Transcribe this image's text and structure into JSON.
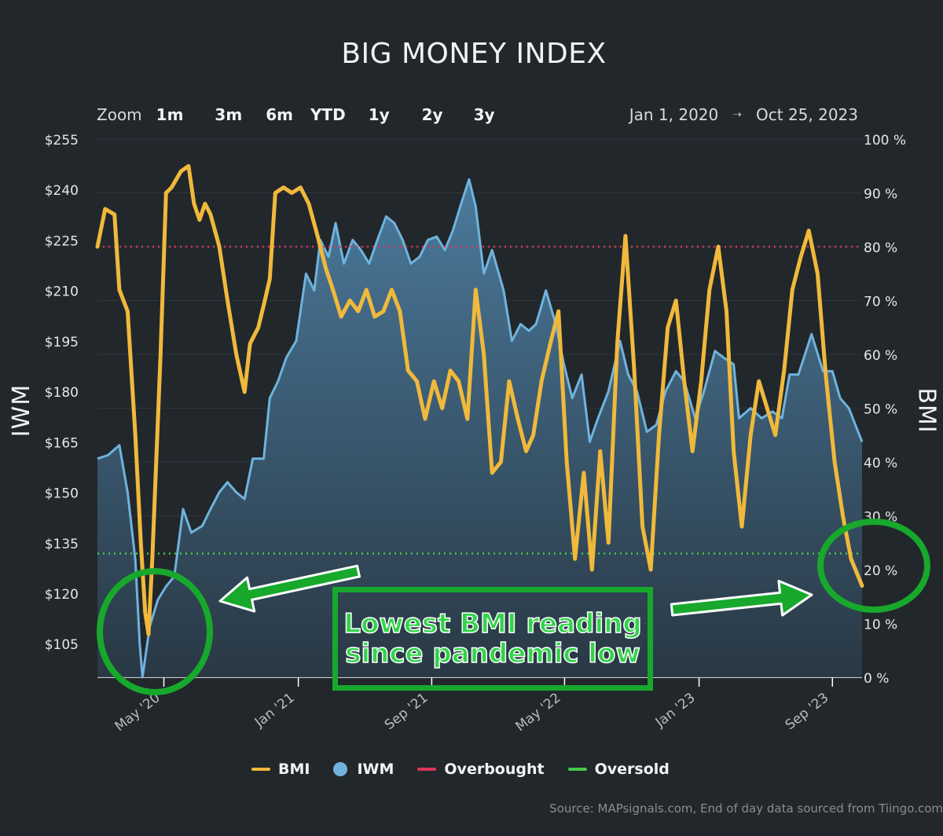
{
  "header": {
    "title": "BIG MONEY INDEX"
  },
  "zoom": {
    "label": "Zoom",
    "buttons": [
      "1m",
      "3m",
      "6m",
      "YTD",
      "1y",
      "2y",
      "3y"
    ]
  },
  "date_range": {
    "from": "Jan 1, 2020",
    "to": "Oct 25, 2023"
  },
  "axes": {
    "left_title": "IWM",
    "right_title": "BMI"
  },
  "legend": [
    {
      "label": "BMI",
      "color": "#f0b93b",
      "shape": "line"
    },
    {
      "label": "IWM",
      "color": "#6fb3dd",
      "shape": "dot"
    },
    {
      "label": "Overbought",
      "color": "#d9365a",
      "shape": "line"
    },
    {
      "label": "Oversold",
      "color": "#46c84b",
      "shape": "line"
    }
  ],
  "callout": {
    "line1": "Lowest BMI reading",
    "line2": "since pandemic low"
  },
  "source": "Source: MAPsignals.com, End of day data sourced from Tiingo.com",
  "chart_data": {
    "type": "line",
    "title": "BIG MONEY INDEX",
    "x_range": [
      "2020-01-01",
      "2023-10-25"
    ],
    "x_ticks": [
      "May '20",
      "Jan '21",
      "Sep '21",
      "May '22",
      "Jan '23",
      "Sep '23"
    ],
    "y_left": {
      "label": "IWM",
      "ticks": [
        "$105",
        "$120",
        "$135",
        "$150",
        "$165",
        "$180",
        "$195",
        "$210",
        "$225",
        "$240",
        "$255"
      ],
      "range": [
        95,
        255
      ]
    },
    "y_right": {
      "label": "BMI",
      "ticks": [
        "0 %",
        "10 %",
        "20 %",
        "30 %",
        "40 %",
        "50 %",
        "60 %",
        "70 %",
        "80 %",
        "90 %",
        "100 %"
      ],
      "range": [
        0,
        100
      ]
    },
    "overbought_level": 80,
    "oversold_level": 23,
    "series": [
      {
        "name": "BMI",
        "axis": "right",
        "color": "#f0b93b",
        "points": [
          [
            "2020-01-01",
            80
          ],
          [
            "2020-01-15",
            87
          ],
          [
            "2020-02-01",
            86
          ],
          [
            "2020-02-10",
            72
          ],
          [
            "2020-02-25",
            68
          ],
          [
            "2020-03-10",
            45
          ],
          [
            "2020-03-20",
            25
          ],
          [
            "2020-03-28",
            12
          ],
          [
            "2020-04-03",
            8
          ],
          [
            "2020-04-10",
            22
          ],
          [
            "2020-04-25",
            60
          ],
          [
            "2020-05-05",
            90
          ],
          [
            "2020-05-15",
            91
          ],
          [
            "2020-06-01",
            94
          ],
          [
            "2020-06-15",
            95
          ],
          [
            "2020-06-25",
            88
          ],
          [
            "2020-07-05",
            85
          ],
          [
            "2020-07-15",
            88
          ],
          [
            "2020-07-25",
            86
          ],
          [
            "2020-08-10",
            80
          ],
          [
            "2020-08-25",
            70
          ],
          [
            "2020-09-10",
            60
          ],
          [
            "2020-09-25",
            53
          ],
          [
            "2020-10-05",
            62
          ],
          [
            "2020-10-20",
            65
          ],
          [
            "2020-11-01",
            70
          ],
          [
            "2020-11-10",
            74
          ],
          [
            "2020-11-20",
            90
          ],
          [
            "2020-12-05",
            91
          ],
          [
            "2020-12-20",
            90
          ],
          [
            "2021-01-05",
            91
          ],
          [
            "2021-01-20",
            88
          ],
          [
            "2021-02-05",
            82
          ],
          [
            "2021-02-20",
            76
          ],
          [
            "2021-03-05",
            72
          ],
          [
            "2021-03-20",
            67
          ],
          [
            "2021-04-05",
            70
          ],
          [
            "2021-04-20",
            68
          ],
          [
            "2021-05-05",
            72
          ],
          [
            "2021-05-20",
            67
          ],
          [
            "2021-06-05",
            68
          ],
          [
            "2021-06-20",
            72
          ],
          [
            "2021-07-05",
            68
          ],
          [
            "2021-07-20",
            57
          ],
          [
            "2021-08-05",
            55
          ],
          [
            "2021-08-20",
            48
          ],
          [
            "2021-09-05",
            55
          ],
          [
            "2021-09-20",
            50
          ],
          [
            "2021-10-05",
            57
          ],
          [
            "2021-10-20",
            55
          ],
          [
            "2021-11-05",
            48
          ],
          [
            "2021-11-20",
            72
          ],
          [
            "2021-12-05",
            60
          ],
          [
            "2021-12-20",
            38
          ],
          [
            "2022-01-05",
            40
          ],
          [
            "2022-01-20",
            55
          ],
          [
            "2022-02-05",
            48
          ],
          [
            "2022-02-20",
            42
          ],
          [
            "2022-03-05",
            45
          ],
          [
            "2022-03-20",
            55
          ],
          [
            "2022-04-05",
            62
          ],
          [
            "2022-04-20",
            68
          ],
          [
            "2022-05-05",
            40
          ],
          [
            "2022-05-20",
            22
          ],
          [
            "2022-06-05",
            38
          ],
          [
            "2022-06-20",
            20
          ],
          [
            "2022-07-05",
            42
          ],
          [
            "2022-07-20",
            25
          ],
          [
            "2022-08-05",
            62
          ],
          [
            "2022-08-20",
            82
          ],
          [
            "2022-09-05",
            57
          ],
          [
            "2022-09-20",
            28
          ],
          [
            "2022-10-05",
            20
          ],
          [
            "2022-10-20",
            45
          ],
          [
            "2022-11-05",
            65
          ],
          [
            "2022-11-20",
            70
          ],
          [
            "2022-12-05",
            55
          ],
          [
            "2022-12-20",
            42
          ],
          [
            "2023-01-05",
            55
          ],
          [
            "2023-01-20",
            72
          ],
          [
            "2023-02-05",
            80
          ],
          [
            "2023-02-20",
            68
          ],
          [
            "2023-03-05",
            42
          ],
          [
            "2023-03-20",
            28
          ],
          [
            "2023-04-05",
            45
          ],
          [
            "2023-04-20",
            55
          ],
          [
            "2023-05-05",
            50
          ],
          [
            "2023-05-20",
            45
          ],
          [
            "2023-06-05",
            57
          ],
          [
            "2023-06-20",
            72
          ],
          [
            "2023-07-05",
            78
          ],
          [
            "2023-07-20",
            83
          ],
          [
            "2023-08-05",
            75
          ],
          [
            "2023-08-20",
            56
          ],
          [
            "2023-09-05",
            40
          ],
          [
            "2023-09-20",
            30
          ],
          [
            "2023-10-05",
            22
          ],
          [
            "2023-10-25",
            17
          ]
        ]
      },
      {
        "name": "IWM",
        "axis": "left",
        "color": "#6fb3dd",
        "points": [
          [
            "2020-01-01",
            160
          ],
          [
            "2020-01-20",
            161
          ],
          [
            "2020-02-10",
            164
          ],
          [
            "2020-02-25",
            150
          ],
          [
            "2020-03-10",
            130
          ],
          [
            "2020-03-18",
            105
          ],
          [
            "2020-03-23",
            95
          ],
          [
            "2020-04-05",
            110
          ],
          [
            "2020-04-20",
            118
          ],
          [
            "2020-05-05",
            122
          ],
          [
            "2020-05-20",
            125
          ],
          [
            "2020-06-05",
            145
          ],
          [
            "2020-06-20",
            138
          ],
          [
            "2020-07-10",
            140
          ],
          [
            "2020-07-25",
            145
          ],
          [
            "2020-08-10",
            150
          ],
          [
            "2020-08-25",
            153
          ],
          [
            "2020-09-10",
            150
          ],
          [
            "2020-09-25",
            148
          ],
          [
            "2020-10-10",
            160
          ],
          [
            "2020-10-30",
            160
          ],
          [
            "2020-11-10",
            178
          ],
          [
            "2020-11-25",
            183
          ],
          [
            "2020-12-10",
            190
          ],
          [
            "2020-12-28",
            195
          ],
          [
            "2021-01-15",
            215
          ],
          [
            "2021-01-30",
            210
          ],
          [
            "2021-02-10",
            225
          ],
          [
            "2021-02-25",
            220
          ],
          [
            "2021-03-10",
            230
          ],
          [
            "2021-03-25",
            218
          ],
          [
            "2021-04-10",
            225
          ],
          [
            "2021-04-25",
            222
          ],
          [
            "2021-05-10",
            218
          ],
          [
            "2021-05-25",
            225
          ],
          [
            "2021-06-10",
            232
          ],
          [
            "2021-06-25",
            230
          ],
          [
            "2021-07-10",
            225
          ],
          [
            "2021-07-25",
            218
          ],
          [
            "2021-08-10",
            220
          ],
          [
            "2021-08-25",
            225
          ],
          [
            "2021-09-10",
            226
          ],
          [
            "2021-09-25",
            222
          ],
          [
            "2021-10-10",
            228
          ],
          [
            "2021-10-25",
            236
          ],
          [
            "2021-11-08",
            243
          ],
          [
            "2021-11-20",
            235
          ],
          [
            "2021-12-05",
            215
          ],
          [
            "2021-12-20",
            222
          ],
          [
            "2022-01-10",
            210
          ],
          [
            "2022-01-25",
            195
          ],
          [
            "2022-02-10",
            200
          ],
          [
            "2022-02-25",
            198
          ],
          [
            "2022-03-10",
            200
          ],
          [
            "2022-03-28",
            210
          ],
          [
            "2022-04-15",
            200
          ],
          [
            "2022-04-30",
            188
          ],
          [
            "2022-05-15",
            178
          ],
          [
            "2022-06-01",
            185
          ],
          [
            "2022-06-16",
            165
          ],
          [
            "2022-07-01",
            172
          ],
          [
            "2022-07-20",
            180
          ],
          [
            "2022-08-10",
            195
          ],
          [
            "2022-08-25",
            185
          ],
          [
            "2022-09-10",
            180
          ],
          [
            "2022-09-28",
            168
          ],
          [
            "2022-10-15",
            170
          ],
          [
            "2022-11-01",
            180
          ],
          [
            "2022-11-20",
            186
          ],
          [
            "2022-12-05",
            183
          ],
          [
            "2022-12-25",
            172
          ],
          [
            "2023-01-10",
            180
          ],
          [
            "2023-01-30",
            192
          ],
          [
            "2023-02-15",
            190
          ],
          [
            "2023-03-05",
            188
          ],
          [
            "2023-03-15",
            172
          ],
          [
            "2023-04-05",
            175
          ],
          [
            "2023-04-25",
            172
          ],
          [
            "2023-05-15",
            174
          ],
          [
            "2023-06-01",
            172
          ],
          [
            "2023-06-15",
            185
          ],
          [
            "2023-07-01",
            185
          ],
          [
            "2023-07-25",
            197
          ],
          [
            "2023-08-15",
            186
          ],
          [
            "2023-09-01",
            186
          ],
          [
            "2023-09-15",
            178
          ],
          [
            "2023-10-01",
            175
          ],
          [
            "2023-10-25",
            165
          ]
        ]
      }
    ],
    "legend_position": "bottom"
  }
}
